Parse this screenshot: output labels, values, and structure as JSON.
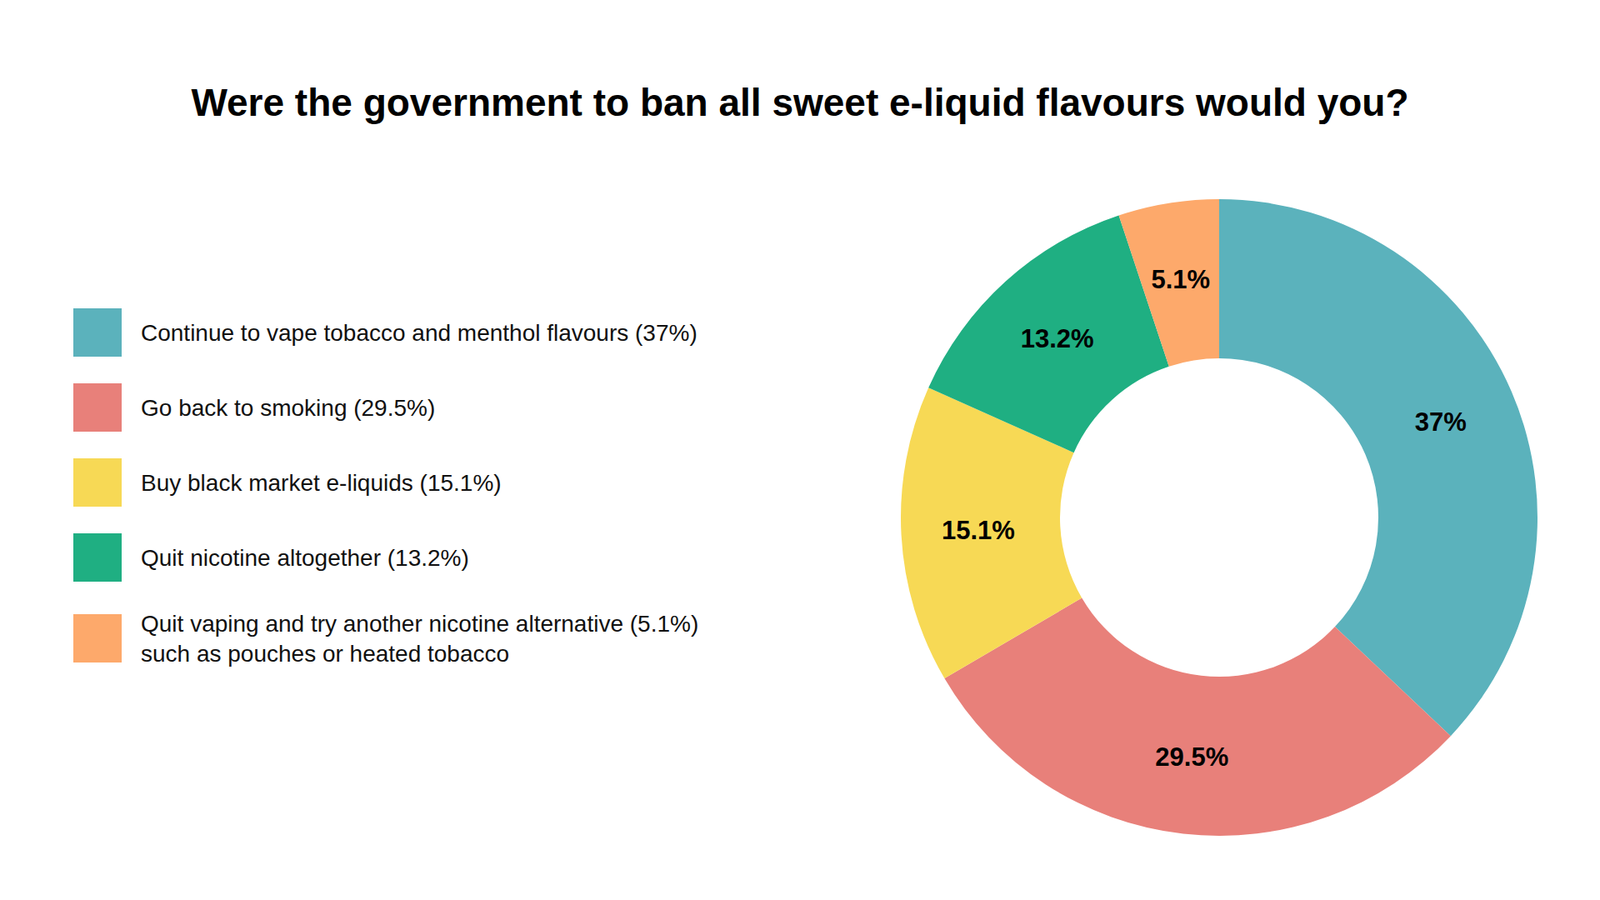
{
  "chart_data": {
    "type": "donut",
    "title": "Were the government to ban all sweet e-liquid flavours would you?",
    "categories": [
      "Continue to vape tobacco and menthol flavours (37%)",
      "Go back to smoking (29.5%)",
      "Buy black market e-liquids (15.1%)",
      "Quit nicotine altogether (13.2%)",
      "Quit vaping and try another nicotine alternative (5.1%)\nsuch as pouches or heated tobacco"
    ],
    "values": [
      37,
      29.5,
      15.1,
      13.2,
      5.1
    ],
    "value_labels": [
      "37%",
      "29.5%",
      "15.1%",
      "13.2%",
      "5.1%"
    ],
    "colors": [
      "#5bb2bc",
      "#e8807a",
      "#f7d955",
      "#1faf82",
      "#fda96b"
    ],
    "data_labels": true,
    "legend": "left"
  }
}
